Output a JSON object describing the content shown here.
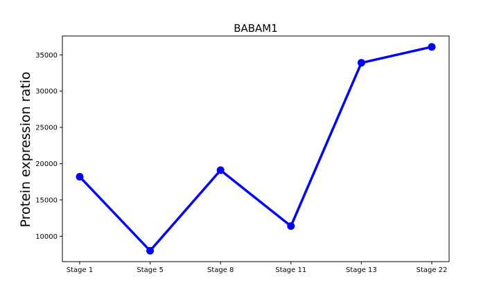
{
  "chart_data": {
    "type": "line",
    "title": "BABAM1",
    "xlabel": "",
    "ylabel": "Protein expression ratio",
    "categories": [
      "Stage 1",
      "Stage 5",
      "Stage 8",
      "Stage 11",
      "Stage 13",
      "Stage 22"
    ],
    "series": [
      {
        "values": [
          18200,
          8000,
          19100,
          11400,
          33900,
          36100
        ]
      }
    ],
    "yticks": [
      10000,
      15000,
      20000,
      25000,
      30000,
      35000
    ],
    "ylim": [
      6500,
      37600
    ],
    "grid": false,
    "color": "#0000ff"
  }
}
